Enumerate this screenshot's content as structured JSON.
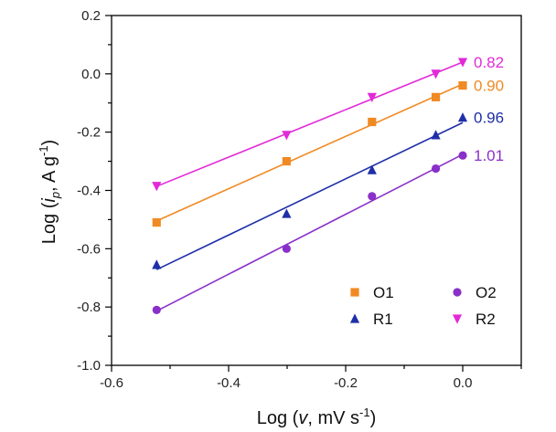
{
  "chart_data": {
    "type": "scatter",
    "xlabel_parts": [
      "Log (",
      "v",
      ", mV s",
      "-1",
      ")"
    ],
    "ylabel_parts": [
      "Log (",
      "i",
      "p",
      ", A g",
      "-1",
      ")"
    ],
    "xlim": [
      -0.6,
      0.1
    ],
    "ylim": [
      -1.0,
      0.2
    ],
    "xticks": [
      -0.6,
      -0.4,
      -0.2,
      0.0
    ],
    "xtick_labels": [
      "-0.6",
      "-0.4",
      "-0.2",
      "0.0"
    ],
    "yticks": [
      0.2,
      0.0,
      -0.2,
      -0.4,
      -0.6,
      -0.8,
      -1.0
    ],
    "ytick_labels": [
      "0.2",
      "0.0",
      "-0.2",
      "-0.4",
      "-0.6",
      "-0.8",
      "-1.0"
    ],
    "x": [
      -0.523,
      -0.301,
      -0.155,
      -0.046,
      0.0
    ],
    "series": [
      {
        "name": "O1",
        "marker": "square",
        "color": "#f08a24",
        "slope_label": "0.90",
        "values": [
          -0.51,
          -0.3,
          -0.165,
          -0.08,
          -0.04
        ]
      },
      {
        "name": "O2",
        "marker": "circle",
        "color": "#8a2fc9",
        "slope_label": "1.01",
        "values": [
          -0.81,
          -0.6,
          -0.42,
          -0.325,
          -0.28
        ]
      },
      {
        "name": "R1",
        "marker": "triangle-up",
        "color": "#1f2fa8",
        "slope_label": "0.96",
        "values": [
          -0.655,
          -0.48,
          -0.33,
          -0.21,
          -0.15
        ]
      },
      {
        "name": "R2",
        "marker": "triangle-down",
        "color": "#e22ad8",
        "slope_label": "0.82",
        "values": [
          -0.385,
          -0.21,
          -0.08,
          0.0,
          0.04
        ]
      }
    ],
    "legend": [
      "O1",
      "O2",
      "R1",
      "R2"
    ]
  }
}
